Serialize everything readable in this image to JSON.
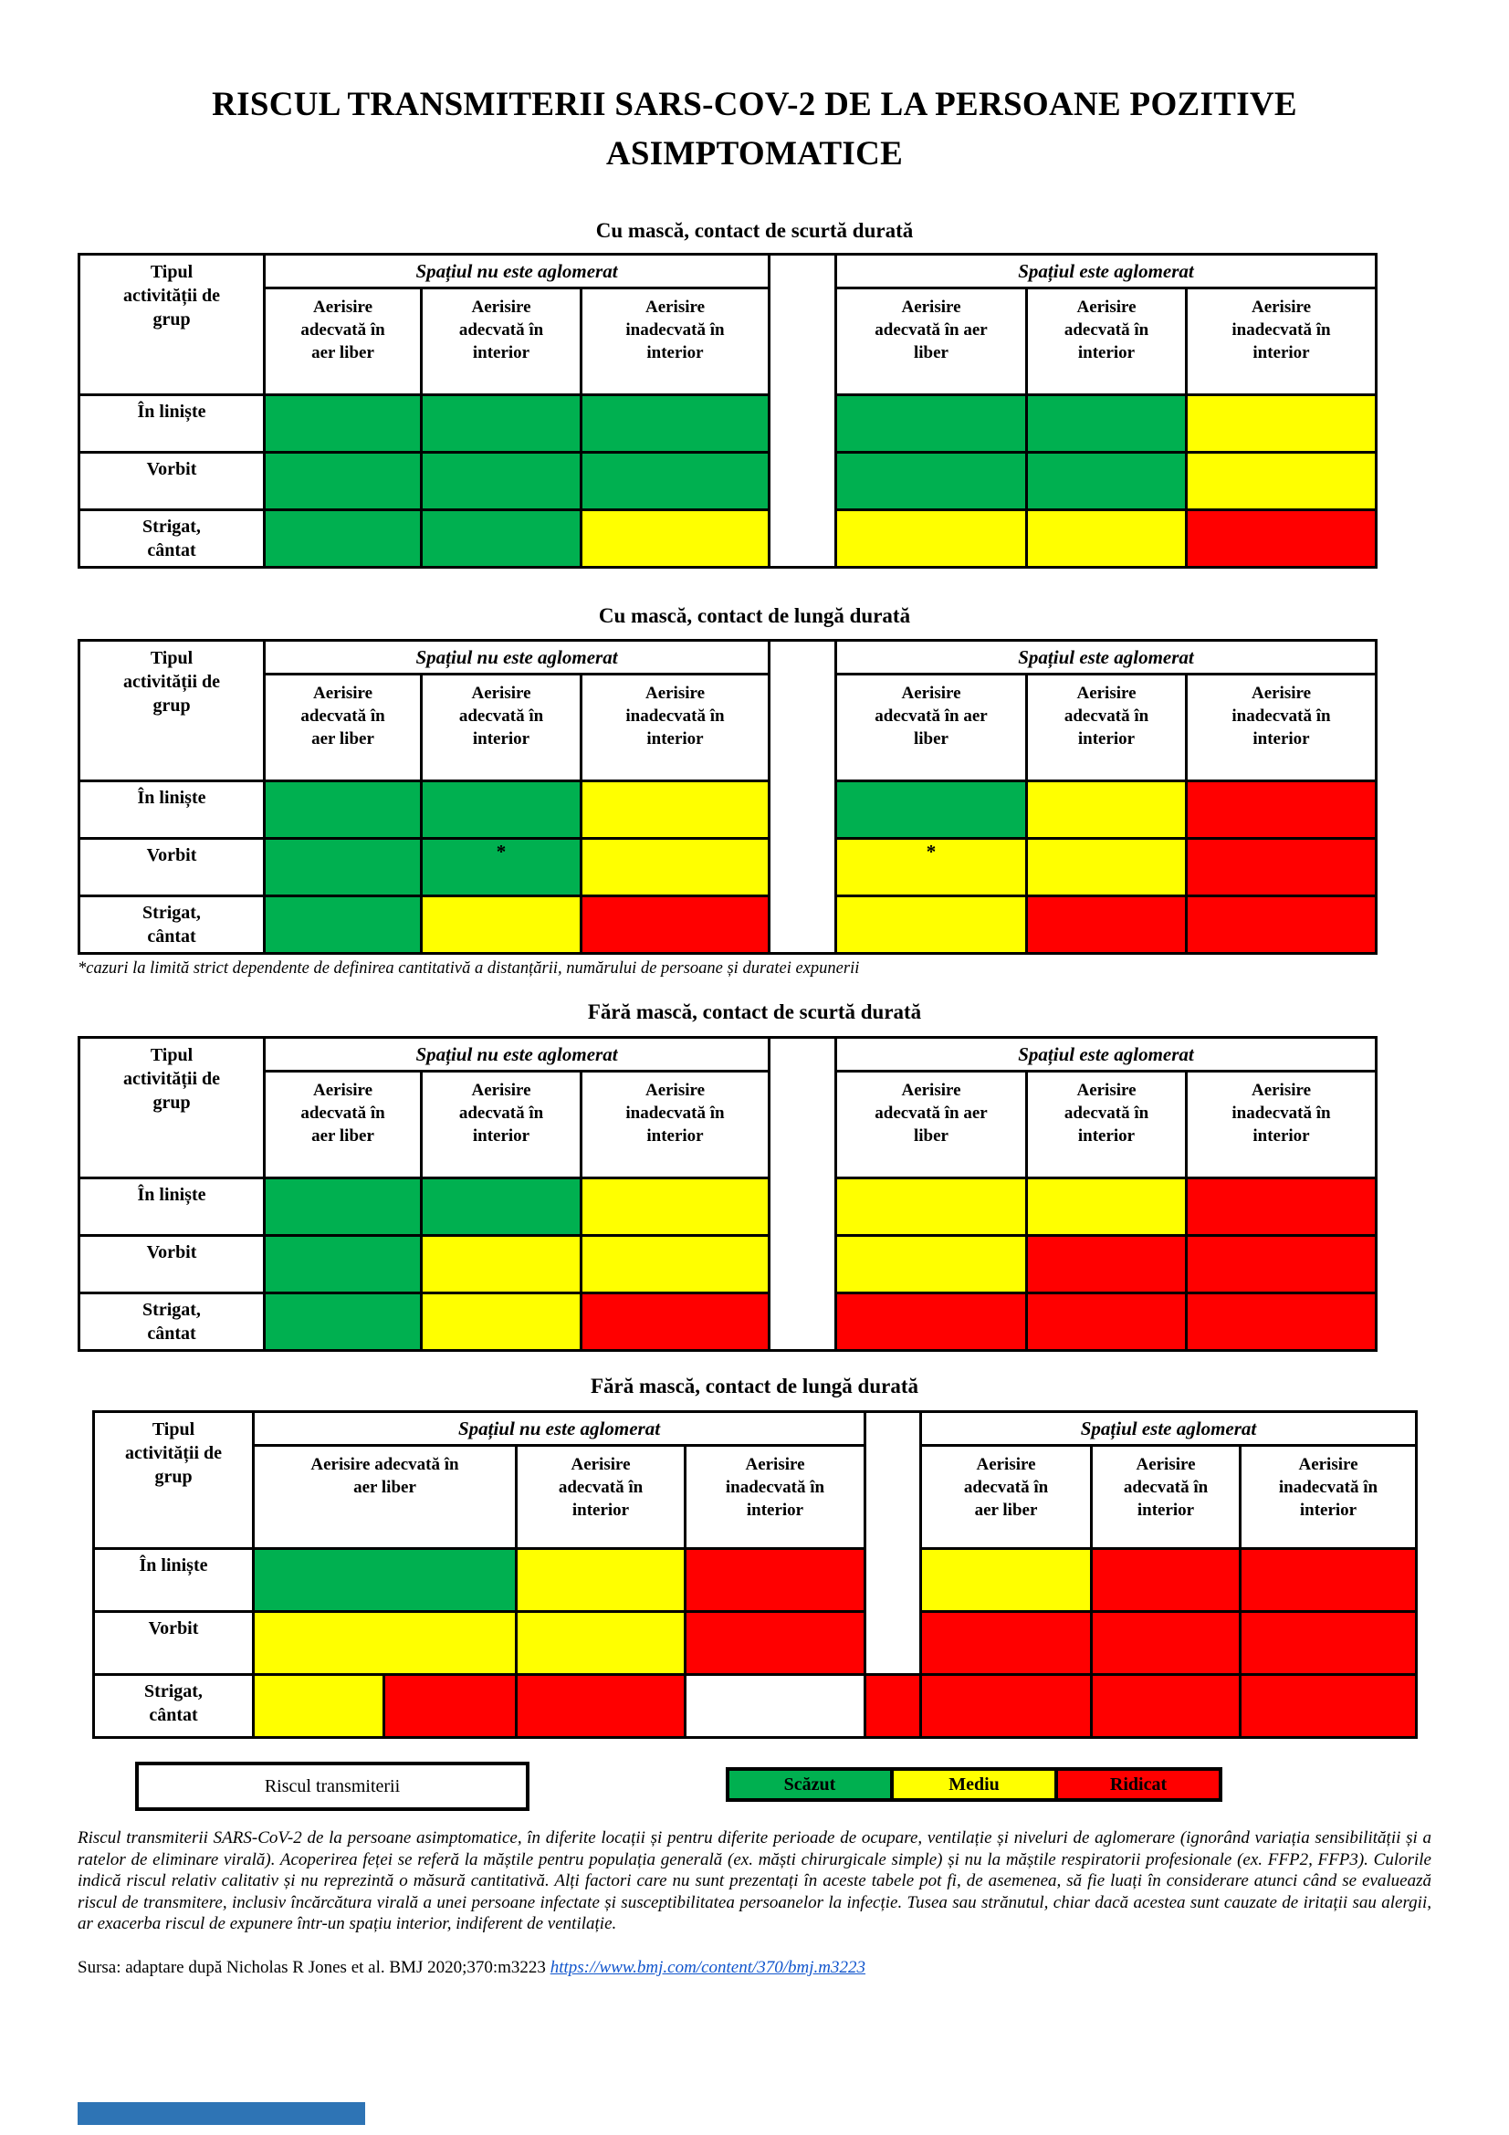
{
  "title": {
    "line1": "RISCUL TRANSMITERII SARS-COV-2 DE LA PERSOANE POZITIVE",
    "line2": "ASIMPTOMATICE"
  },
  "colors": {
    "low": "#00B050",
    "medium": "#FFFF00",
    "high": "#FF0000",
    "none": "#FFFFFF"
  },
  "common": {
    "row_header": "Tipul\nactivității de\ngrup",
    "group_left": "Spațiul nu este aglomerat",
    "group_right": "Spațiul este aglomerat"
  },
  "tables": [
    {
      "caption": "Cu mască, contact de scurtă durată",
      "sub_headers": [
        "Aerisire\nadecvată în\naer liber",
        "Aerisire\nadecvată în\ninterior",
        "Aerisire\ninadecvată în\ninterior",
        "Aerisire\nadecvată în aer\nliber",
        "Aerisire\nadecvată în\ninterior",
        "Aerisire\ninadecvată în\ninterior"
      ],
      "rows": [
        {
          "label": "În liniște",
          "cells": [
            "low",
            "low",
            "low",
            "low",
            "low",
            "medium"
          ]
        },
        {
          "label": "Vorbit",
          "cells": [
            "low",
            "low",
            "low",
            "low",
            "low",
            "medium"
          ]
        },
        {
          "label": "Strigat,\ncântat",
          "cells": [
            "low",
            "low",
            "medium",
            "medium",
            "medium",
            "high"
          ]
        }
      ]
    },
    {
      "caption": "Cu mască, contact de lungă durată",
      "sub_headers": [
        "Aerisire\nadecvată în\naer liber",
        "Aerisire\nadecvată în\ninterior",
        "Aerisire\ninadecvată în\ninterior",
        "Aerisire\nadecvată în aer\nliber",
        "Aerisire\nadecvată în\ninterior",
        "Aerisire\ninadecvată în\ninterior"
      ],
      "rows": [
        {
          "label": "În liniște",
          "cells": [
            "low",
            "low",
            "medium",
            "low",
            "medium",
            "high"
          ]
        },
        {
          "label": "Vorbit",
          "cells": [
            "low",
            "low",
            "medium",
            "medium",
            "medium",
            "high"
          ],
          "marks": [
            "",
            "*",
            "",
            "*",
            "",
            ""
          ]
        },
        {
          "label": "Strigat,\ncântat",
          "cells": [
            "low",
            "medium",
            "high",
            "medium",
            "high",
            "high"
          ]
        }
      ]
    },
    {
      "caption": "Fără mască, contact de scurtă durată",
      "sub_headers": [
        "Aerisire\nadecvată în\naer liber",
        "Aerisire\nadecvată în\ninterior",
        "Aerisire\ninadecvată în\ninterior",
        "Aerisire\nadecvată în aer\nliber",
        "Aerisire\nadecvată în\ninterior",
        "Aerisire\ninadecvată în\ninterior"
      ],
      "rows": [
        {
          "label": "În liniște",
          "cells": [
            "low",
            "low",
            "medium",
            "medium",
            "medium",
            "high"
          ]
        },
        {
          "label": "Vorbit",
          "cells": [
            "low",
            "medium",
            "medium",
            "medium",
            "high",
            "high"
          ]
        },
        {
          "label": "Strigat,\ncântat",
          "cells": [
            "low",
            "medium",
            "high",
            "high",
            "high",
            "high"
          ]
        }
      ]
    },
    {
      "caption": "Fără mască, contact de lungă durată",
      "sub_headers": [
        "Aerisire adecvată în\naer liber",
        "Aerisire\nadecvată în\ninterior",
        "Aerisire\ninadecvată în\ninterior",
        "Aerisire\nadecvată în\naer liber",
        "Aerisire\nadecvată în\ninterior",
        "Aerisire\ninadecvată în\ninterior"
      ],
      "rows": [
        {
          "label": "În liniște",
          "cells": [
            "low",
            "medium",
            "high",
            "medium",
            "high",
            "high"
          ]
        },
        {
          "label": "Vorbit",
          "cells": [
            "medium",
            "medium",
            "high",
            "high",
            "high",
            "high"
          ]
        },
        {
          "label": "Strigat,\ncântat",
          "special": "split",
          "cells": [
            "medium",
            "high",
            "high",
            "none",
            "high",
            "high",
            "high",
            "high"
          ]
        }
      ]
    }
  ],
  "footnote": "*cazuri la limită strict dependente de definirea cantitativă a distanțării, numărului de persoane și duratei expunerii",
  "legend": {
    "box_label": "Riscul transmiterii",
    "items": [
      {
        "label": "Scăzut",
        "color": "#00B050"
      },
      {
        "label": "Mediu",
        "color": "#FFFF00"
      },
      {
        "label": "Ridicat",
        "color": "#FF0000"
      }
    ]
  },
  "description": "Riscul transmiterii SARS-CoV-2 de la persoane asimptomatice, în diferite locații și pentru diferite perioade de ocupare, ventilație și niveluri de aglomerare (ignorând variația sensibilității și a ratelor de eliminare virală). Acoperirea feței se referă la măștile pentru populația generală (ex. măști chirurgicale simple) și nu la măștile respiratorii profesionale (ex. FFP2, FFP3). Culorile indică riscul relativ calitativ și nu reprezintă o măsură cantitativă. Alți factori care nu sunt prezentați în aceste tabele pot fi, de asemenea, să fie luați în considerare atunci când se evaluează riscul de transmitere, inclusiv încărcătura virală a unei persoane infectate și susceptibilitatea persoanelor la infecție. Tusea sau strănutul, chiar dacă acestea sunt cauzate de iritații sau alergii, ar exacerba riscul de expunere într-un spațiu interior, indiferent de ventilație.",
  "source": {
    "text": "Sursa: adaptare după Nicholas R Jones et al. BMJ 2020;370:m3223",
    "link": "https://www.bmj.com/content/370/bmj.m3223"
  }
}
